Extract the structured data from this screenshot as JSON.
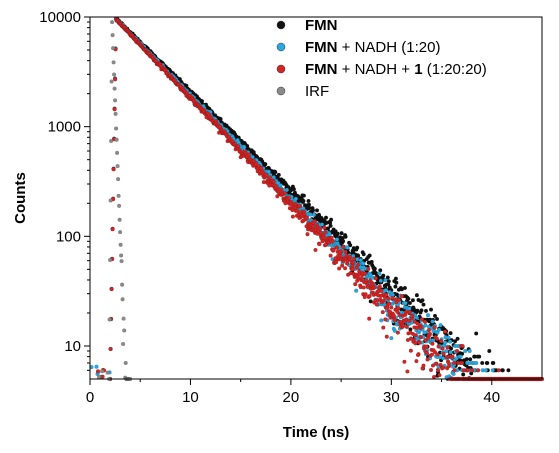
{
  "chart_data": {
    "type": "scatter",
    "title": "",
    "xlabel": "Time (ns)",
    "ylabel": "Counts",
    "xlim": [
      0,
      45
    ],
    "ylim": [
      5,
      10000
    ],
    "yscale": "log",
    "xticks": [
      0,
      10,
      20,
      30,
      40
    ],
    "xtick_labels": [
      "0",
      "10",
      "20",
      "30",
      "40"
    ],
    "yticks": [
      10,
      100,
      1000,
      10000
    ],
    "ytick_labels": [
      "10",
      "100",
      "1000",
      "10000"
    ],
    "grid": false,
    "legend_position": "top-right",
    "series": [
      {
        "name_bold": "FMN",
        "name_rest": "",
        "color": "#111111",
        "rise_start": 2.0,
        "peak_time": 2.6,
        "peak_counts": 9700,
        "decay_time_ns": 4.8,
        "tail_end": 45
      },
      {
        "name_bold": "FMN",
        "name_rest": " + NADH (1:20)",
        "color": "#29a8e0",
        "rise_start": 2.0,
        "peak_time": 2.6,
        "peak_counts": 9600,
        "decay_time_ns": 4.6,
        "tail_end": 45
      },
      {
        "name_bold": "FMN",
        "name_rest": " + NADH + ",
        "name_bold2": "1",
        "name_rest2": " (1:20:20)",
        "color": "#d42424",
        "rise_start": 2.0,
        "peak_time": 2.6,
        "peak_counts": 9500,
        "decay_time_ns": 4.5,
        "tail_end": 45
      },
      {
        "name_bold": "",
        "name_rest": "IRF",
        "color": "#8a8a8a",
        "rise_start": 1.9,
        "peak_time": 2.2,
        "peak_counts": 9000,
        "decay_time_ns": 0.18,
        "tail_end": 4.0
      }
    ]
  }
}
